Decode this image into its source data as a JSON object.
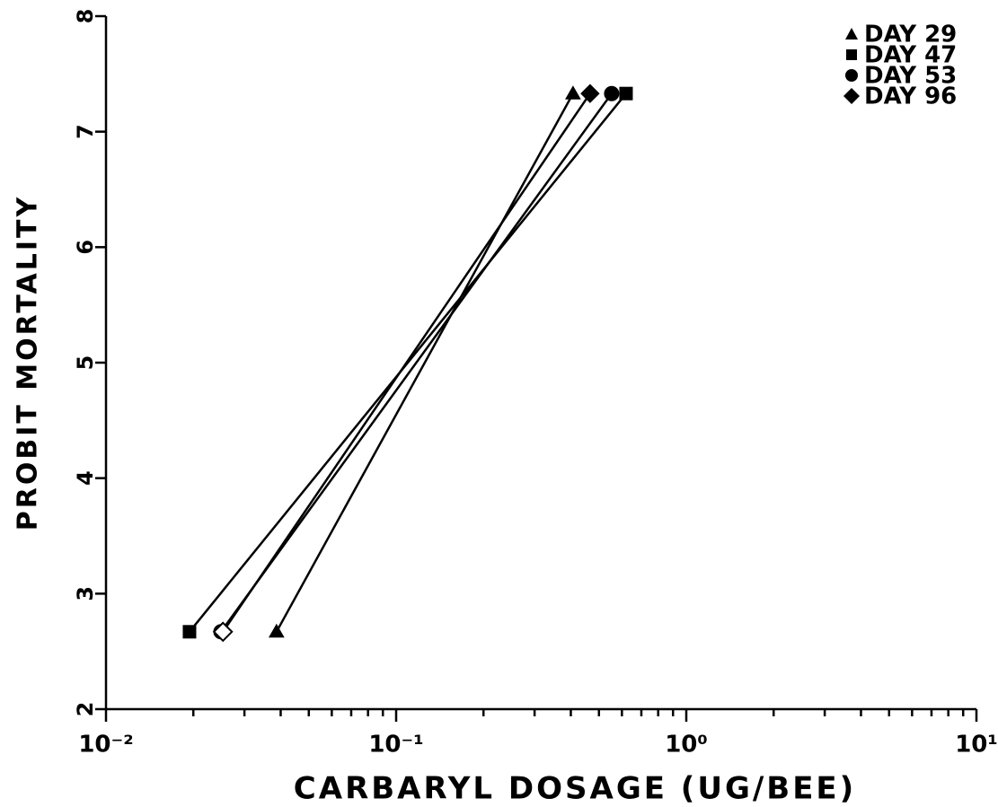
{
  "chart_data": {
    "type": "line",
    "xlabel": "CARBARYL DOSAGE (UG/BEE)",
    "ylabel": "PROBIT MORTALITY",
    "xscale": "log",
    "xlim": [
      0.01,
      10
    ],
    "ylim": [
      2,
      8
    ],
    "xticks": [
      {
        "value": 0.01,
        "label": "10⁻²"
      },
      {
        "value": 0.1,
        "label": "10⁻¹"
      },
      {
        "value": 1,
        "label": "10⁰"
      },
      {
        "value": 10,
        "label": "10¹"
      }
    ],
    "xminorticks": [
      0.02,
      0.03,
      0.04,
      0.05,
      0.06,
      0.07,
      0.08,
      0.09,
      0.2,
      0.3,
      0.4,
      0.5,
      0.6,
      0.7,
      0.8,
      0.9,
      2,
      3,
      4,
      5,
      6,
      7,
      8,
      9
    ],
    "yticks": [
      2,
      3,
      4,
      5,
      6,
      7,
      8
    ],
    "legend": "upper right",
    "series": [
      {
        "name": "DAY 29",
        "marker": "triangle",
        "color": "#000000",
        "x": [
          0.0387,
          0.407
        ],
        "values": [
          2.67,
          7.33
        ]
      },
      {
        "name": "DAY 47",
        "marker": "square",
        "color": "#000000",
        "x": [
          0.0194,
          0.62
        ],
        "values": [
          2.67,
          7.33
        ]
      },
      {
        "name": "DAY 53",
        "marker": "circle",
        "color": "#000000",
        "x": [
          0.0249,
          0.553
        ],
        "values": [
          2.67,
          7.33
        ]
      },
      {
        "name": "DAY 96",
        "marker": "diamond",
        "color": "#000000",
        "x": [
          0.0253,
          0.466
        ],
        "values": [
          2.67,
          7.33
        ]
      }
    ]
  }
}
